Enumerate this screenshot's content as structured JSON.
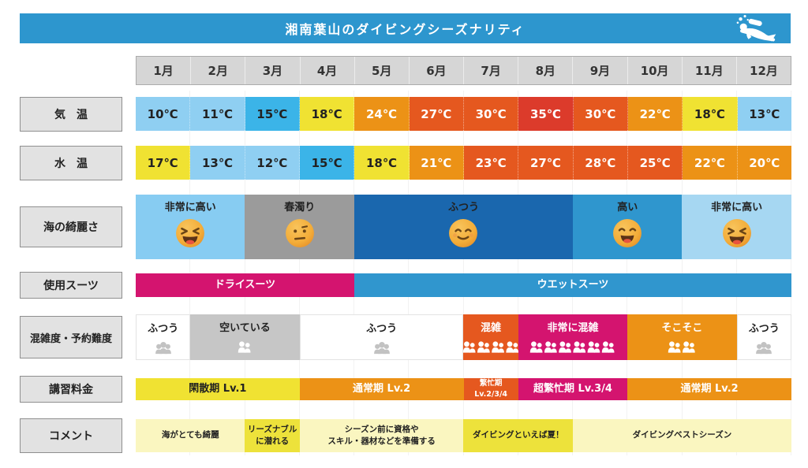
{
  "header": {
    "title": "湘南葉山のダイビングシーズナリティ",
    "icon": "scuba-diver-icon"
  },
  "months": [
    "1月",
    "2月",
    "3月",
    "4月",
    "5月",
    "6月",
    "7月",
    "8月",
    "9月",
    "10月",
    "11月",
    "12月"
  ],
  "palette": {
    "headerBlue": "#2D96CE",
    "monthGray": "#D6D6D6",
    "labelGray": "#E2E2E2",
    "lightBlue": "#8FCFF2",
    "brightBlue": "#3BB4E8",
    "yellow": "#F0E232",
    "orange": "#EC9216",
    "darkOrange": "#E5581F",
    "red": "#DC3B2B",
    "seaLight1": "#87CCF2",
    "springGray": "#9B9B9B",
    "seaDark": "#1A67AE",
    "seaMed": "#2F96CE",
    "seaLight2": "#A6D7F2",
    "magenta": "#D4146F",
    "suitBlue": "#3096CE",
    "white": "#FFFFFF",
    "emptyGray": "#C6C6C6",
    "paleYellow": "#FAF6C0",
    "brightYellow": "#EDE23B",
    "peopleGray": "#C2C2C2"
  },
  "rows": [
    {
      "id": "air_temp",
      "label": "気　温",
      "type": "cells",
      "cells": [
        {
          "text": "10℃",
          "bg": "lightBlue",
          "fg": "dark"
        },
        {
          "text": "11℃",
          "bg": "lightBlue",
          "fg": "dark"
        },
        {
          "text": "15℃",
          "bg": "brightBlue",
          "fg": "dark"
        },
        {
          "text": "18℃",
          "bg": "yellow",
          "fg": "dark"
        },
        {
          "text": "24℃",
          "bg": "orange",
          "fg": "white"
        },
        {
          "text": "27℃",
          "bg": "darkOrange",
          "fg": "white"
        },
        {
          "text": "30℃",
          "bg": "darkOrange",
          "fg": "white"
        },
        {
          "text": "35℃",
          "bg": "red",
          "fg": "white"
        },
        {
          "text": "30℃",
          "bg": "darkOrange",
          "fg": "white"
        },
        {
          "text": "22℃",
          "bg": "orange",
          "fg": "white"
        },
        {
          "text": "18℃",
          "bg": "yellow",
          "fg": "dark"
        },
        {
          "text": "13℃",
          "bg": "lightBlue",
          "fg": "dark"
        }
      ]
    },
    {
      "id": "water_temp",
      "label": "水　温",
      "type": "cells",
      "cells": [
        {
          "text": "17℃",
          "bg": "yellow",
          "fg": "dark"
        },
        {
          "text": "13℃",
          "bg": "lightBlue",
          "fg": "dark"
        },
        {
          "text": "12℃",
          "bg": "lightBlue",
          "fg": "dark"
        },
        {
          "text": "15℃",
          "bg": "brightBlue",
          "fg": "dark"
        },
        {
          "text": "18℃",
          "bg": "yellow",
          "fg": "dark"
        },
        {
          "text": "21℃",
          "bg": "orange",
          "fg": "white"
        },
        {
          "text": "23℃",
          "bg": "darkOrange",
          "fg": "white"
        },
        {
          "text": "27℃",
          "bg": "darkOrange",
          "fg": "white"
        },
        {
          "text": "28℃",
          "bg": "darkOrange",
          "fg": "white"
        },
        {
          "text": "25℃",
          "bg": "darkOrange",
          "fg": "white"
        },
        {
          "text": "22℃",
          "bg": "orange",
          "fg": "white"
        },
        {
          "text": "20℃",
          "bg": "orange",
          "fg": "white"
        }
      ]
    },
    {
      "id": "sea_clarity",
      "label": "海の綺麗さ",
      "type": "spans",
      "spans": [
        {
          "text": "非常に高い",
          "start": 1,
          "end": 2,
          "bg": "seaLight1",
          "fg": "dark",
          "emoji": "laugh"
        },
        {
          "text": "春濁り",
          "start": 3,
          "end": 4,
          "bg": "springGray",
          "fg": "dark",
          "emoji": "neutral"
        },
        {
          "text": "ふつう",
          "start": 5,
          "end": 8,
          "bg": "seaDark",
          "fg": "dark",
          "emoji": "smile"
        },
        {
          "text": "高い",
          "start": 9,
          "end": 10,
          "bg": "seaMed",
          "fg": "dark",
          "emoji": "grin"
        },
        {
          "text": "非常に高い",
          "start": 11,
          "end": 12,
          "bg": "seaLight2",
          "fg": "dark",
          "emoji": "laugh"
        }
      ]
    },
    {
      "id": "suit",
      "label": "使用スーツ",
      "type": "spans",
      "spans": [
        {
          "text": "ドライスーツ",
          "start": 1,
          "end": 4,
          "bg": "magenta",
          "fg": "white"
        },
        {
          "text": "ウエットスーツ",
          "start": 5,
          "end": 12,
          "bg": "suitBlue",
          "fg": "white"
        }
      ]
    },
    {
      "id": "congestion",
      "label": "混雑度・予約難度",
      "type": "spans",
      "spans": [
        {
          "text": "ふつう",
          "start": 1,
          "end": 1,
          "bg": "white",
          "fg": "dark",
          "icon": {
            "name": "people-group-icon",
            "style": "triple",
            "units": 1,
            "color": "#C2C2C2"
          }
        },
        {
          "text": "空いている",
          "start": 2,
          "end": 3,
          "bg": "emptyGray",
          "fg": "dark",
          "icon": {
            "name": "people-group-icon",
            "style": "pair",
            "units": 1,
            "color": "#FFFFFF"
          }
        },
        {
          "text": "ふつう",
          "start": 4,
          "end": 6,
          "bg": "white",
          "fg": "dark",
          "icon": {
            "name": "people-group-icon",
            "style": "triple",
            "units": 1,
            "color": "#C2C2C2"
          }
        },
        {
          "text": "混雑",
          "start": 7,
          "end": 7,
          "bg": "darkOrange",
          "fg": "white",
          "icon": {
            "name": "people-group-icon",
            "style": "pair",
            "units": 4,
            "color": "#FFFFFF"
          }
        },
        {
          "text": "非常に混雑",
          "start": 8,
          "end": 9,
          "bg": "magenta",
          "fg": "white",
          "icon": {
            "name": "people-group-icon",
            "style": "pair",
            "units": 6,
            "color": "#FFFFFF"
          }
        },
        {
          "text": "そこそこ",
          "start": 10,
          "end": 11,
          "bg": "orange",
          "fg": "white",
          "icon": {
            "name": "people-group-icon",
            "style": "pair",
            "units": 2,
            "color": "#FFFFFF"
          }
        },
        {
          "text": "ふつう",
          "start": 12,
          "end": 12,
          "bg": "white",
          "fg": "dark",
          "icon": {
            "name": "people-group-icon",
            "style": "triple",
            "units": 1,
            "color": "#C2C2C2"
          }
        }
      ]
    },
    {
      "id": "price",
      "label": "講習料金",
      "type": "spans",
      "spans": [
        {
          "text": "閑散期 Lv.1",
          "start": 1,
          "end": 3,
          "bg": "yellow",
          "fg": "dark"
        },
        {
          "text": "通常期 Lv.2",
          "start": 4,
          "end": 6,
          "bg": "orange",
          "fg": "white"
        },
        {
          "text": "繁忙期 Lv.2/3/4",
          "start": 7,
          "end": 7,
          "bg": "darkOrange",
          "fg": "white"
        },
        {
          "text": "超繁忙期 Lv.3/4",
          "start": 8,
          "end": 9,
          "bg": "magenta",
          "fg": "white"
        },
        {
          "text": "通常期 Lv.2",
          "start": 10,
          "end": 12,
          "bg": "orange",
          "fg": "white"
        }
      ]
    },
    {
      "id": "comment",
      "label": "コメント",
      "type": "spans",
      "spans": [
        {
          "text": "海がとても綺麗",
          "start": 1,
          "end": 2,
          "bg": "paleYellow",
          "fg": "dark"
        },
        {
          "text": "リーズナブル\nに潜れる",
          "start": 3,
          "end": 3,
          "bg": "brightYellow",
          "fg": "dark"
        },
        {
          "text": "シーズン前に資格や\nスキル・器材などを準備する",
          "start": 4,
          "end": 6,
          "bg": "paleYellow",
          "fg": "dark"
        },
        {
          "text": "ダイビングといえば夏！",
          "start": 7,
          "end": 8,
          "bg": "brightYellow",
          "fg": "dark"
        },
        {
          "text": "ダイビングベストシーズン",
          "start": 9,
          "end": 12,
          "bg": "paleYellow",
          "fg": "dark"
        }
      ]
    }
  ],
  "chart_data": {
    "type": "table",
    "title": "湘南葉山のダイビングシーズナリティ",
    "categories": [
      "1月",
      "2月",
      "3月",
      "4月",
      "5月",
      "6月",
      "7月",
      "8月",
      "9月",
      "10月",
      "11月",
      "12月"
    ],
    "series": [
      {
        "name": "気温",
        "unit": "℃",
        "values": [
          10,
          11,
          15,
          18,
          24,
          27,
          30,
          35,
          30,
          22,
          18,
          13
        ]
      },
      {
        "name": "水温",
        "unit": "℃",
        "values": [
          17,
          13,
          12,
          15,
          18,
          21,
          23,
          27,
          28,
          25,
          22,
          20
        ]
      }
    ],
    "categorical_rows": [
      {
        "name": "海の綺麗さ",
        "spans": [
          {
            "label": "非常に高い",
            "months": "1-2"
          },
          {
            "label": "春濁り",
            "months": "3-4"
          },
          {
            "label": "ふつう",
            "months": "5-8"
          },
          {
            "label": "高い",
            "months": "9-10"
          },
          {
            "label": "非常に高い",
            "months": "11-12"
          }
        ]
      },
      {
        "name": "使用スーツ",
        "spans": [
          {
            "label": "ドライスーツ",
            "months": "1-4"
          },
          {
            "label": "ウエットスーツ",
            "months": "5-12"
          }
        ]
      },
      {
        "name": "混雑度・予約難度",
        "spans": [
          {
            "label": "ふつう",
            "months": "1"
          },
          {
            "label": "空いている",
            "months": "2-3"
          },
          {
            "label": "ふつう",
            "months": "4-6"
          },
          {
            "label": "混雑",
            "months": "7"
          },
          {
            "label": "非常に混雑",
            "months": "8-9"
          },
          {
            "label": "そこそこ",
            "months": "10-11"
          },
          {
            "label": "ふつう",
            "months": "12"
          }
        ]
      },
      {
        "name": "講習料金",
        "spans": [
          {
            "label": "閑散期 Lv.1",
            "months": "1-3"
          },
          {
            "label": "通常期 Lv.2",
            "months": "4-6"
          },
          {
            "label": "繁忙期 Lv.2/3/4",
            "months": "7"
          },
          {
            "label": "超繁忙期 Lv.3/4",
            "months": "8-9"
          },
          {
            "label": "通常期 Lv.2",
            "months": "10-12"
          }
        ]
      },
      {
        "name": "コメント",
        "spans": [
          {
            "label": "海がとても綺麗",
            "months": "1-2"
          },
          {
            "label": "リーズナブルに潜れる",
            "months": "3"
          },
          {
            "label": "シーズン前に資格やスキル・器材などを準備する",
            "months": "4-6"
          },
          {
            "label": "ダイビングといえば夏！",
            "months": "7-8"
          },
          {
            "label": "ダイビングベストシーズン",
            "months": "9-12"
          }
        ]
      }
    ]
  }
}
